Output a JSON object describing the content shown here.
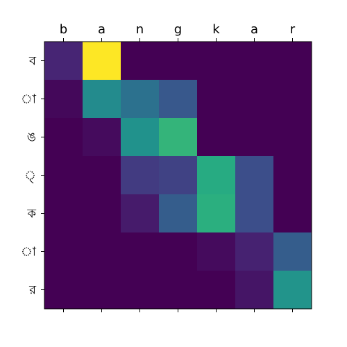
{
  "chart_data": {
    "type": "heatmap",
    "title": "",
    "xlabel": "",
    "ylabel": "",
    "x_labels": [
      "b",
      "a",
      "n",
      "g",
      "k",
      "a",
      "r"
    ],
    "y_labels": [
      "ব",
      "া",
      "ঙ",
      "্",
      "ক",
      "া",
      "র"
    ],
    "colormap": "viridis",
    "value_range": [
      0,
      1
    ],
    "values": [
      [
        0.11,
        1.0,
        0.0,
        0.0,
        0.0,
        0.0,
        0.0
      ],
      [
        0.02,
        0.48,
        0.38,
        0.28,
        0.0,
        0.0,
        0.0
      ],
      [
        0.0,
        0.03,
        0.51,
        0.66,
        0.0,
        0.0,
        0.0
      ],
      [
        0.0,
        0.0,
        0.18,
        0.2,
        0.62,
        0.24,
        0.0
      ],
      [
        0.0,
        0.0,
        0.08,
        0.3,
        0.64,
        0.24,
        0.0
      ],
      [
        0.0,
        0.0,
        0.0,
        0.0,
        0.03,
        0.1,
        0.3
      ],
      [
        0.0,
        0.0,
        0.0,
        0.0,
        0.0,
        0.06,
        0.52
      ]
    ],
    "grid": false,
    "x_ticks_position": "top and bottom",
    "x_labels_position": "top"
  }
}
